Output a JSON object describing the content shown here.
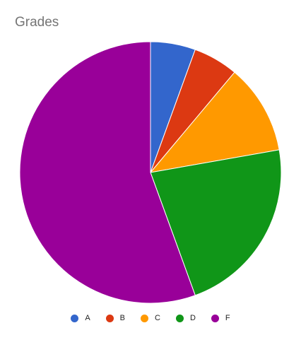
{
  "chart_data": {
    "type": "pie",
    "title": "Grades",
    "categories": [
      "A",
      "B",
      "C",
      "D",
      "F"
    ],
    "values": [
      1,
      1,
      2,
      4,
      10
    ],
    "colors": [
      "#3366cc",
      "#dc3912",
      "#ff9900",
      "#109618",
      "#990099"
    ],
    "legend_position": "bottom",
    "start_angle_deg": 0,
    "direction": "clockwise"
  }
}
